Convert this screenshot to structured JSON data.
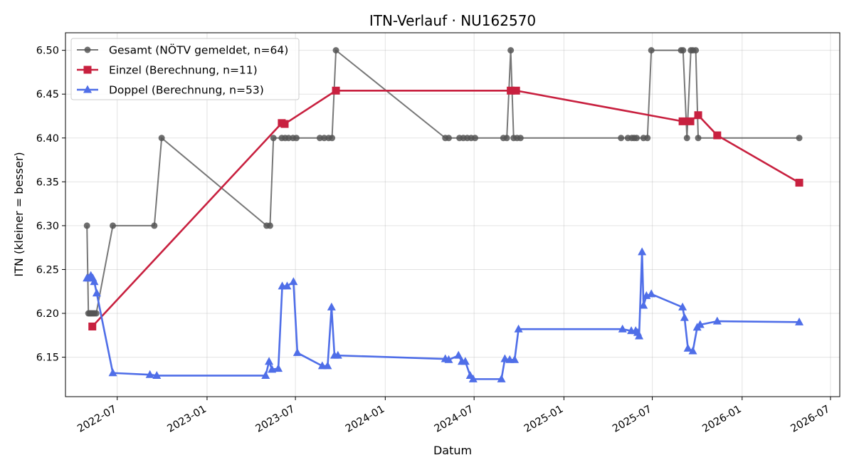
{
  "chart_data": {
    "type": "line",
    "title": "ITN-Verlauf · NU162570",
    "xlabel": "Datum",
    "ylabel": "ITN  (kleiner = besser)",
    "x_type": "date",
    "xlim": [
      "2022-03-17",
      "2026-07-20"
    ],
    "ylim": [
      6.105,
      6.52
    ],
    "x_ticks": [
      "2022-07-01",
      "2023-01-01",
      "2023-07-01",
      "2024-01-01",
      "2024-07-01",
      "2025-01-01",
      "2025-07-01",
      "2026-01-01",
      "2026-07-01"
    ],
    "x_tick_labels": [
      "2022-07",
      "2023-01",
      "2023-07",
      "2024-01",
      "2024-07",
      "2025-01",
      "2025-07",
      "2026-01",
      "2026-07"
    ],
    "y_ticks": [
      6.15,
      6.2,
      6.25,
      6.3,
      6.35,
      6.4,
      6.45,
      6.5
    ],
    "y_tick_labels": [
      "6.15",
      "6.20",
      "6.25",
      "6.30",
      "6.35",
      "6.40",
      "6.45",
      "6.50"
    ],
    "grid": true,
    "legend_position": "top-left",
    "series": [
      {
        "name": "Gesamt (NÖTV gemeldet, n=64)",
        "color": "#555555",
        "marker": "circle",
        "points": [
          [
            "2022-04-30",
            6.3
          ],
          [
            "2022-05-03",
            6.2
          ],
          [
            "2022-05-06",
            6.2
          ],
          [
            "2022-05-09",
            6.2
          ],
          [
            "2022-05-12",
            6.2
          ],
          [
            "2022-05-15",
            6.2
          ],
          [
            "2022-05-19",
            6.2
          ],
          [
            "2022-06-22",
            6.3
          ],
          [
            "2022-09-15",
            6.3
          ],
          [
            "2022-09-30",
            6.4
          ],
          [
            "2023-05-03",
            6.3
          ],
          [
            "2023-05-10",
            6.3
          ],
          [
            "2023-05-17",
            6.4
          ],
          [
            "2023-06-03",
            6.4
          ],
          [
            "2023-06-10",
            6.4
          ],
          [
            "2023-06-17",
            6.4
          ],
          [
            "2023-06-26",
            6.4
          ],
          [
            "2023-07-03",
            6.4
          ],
          [
            "2023-08-20",
            6.4
          ],
          [
            "2023-08-29",
            6.4
          ],
          [
            "2023-09-07",
            6.4
          ],
          [
            "2023-09-14",
            6.4
          ],
          [
            "2023-09-22",
            6.5
          ],
          [
            "2024-05-03",
            6.4
          ],
          [
            "2024-05-10",
            6.4
          ],
          [
            "2024-06-01",
            6.4
          ],
          [
            "2024-06-09",
            6.4
          ],
          [
            "2024-06-17",
            6.4
          ],
          [
            "2024-06-25",
            6.4
          ],
          [
            "2024-07-03",
            6.4
          ],
          [
            "2024-08-30",
            6.4
          ],
          [
            "2024-09-06",
            6.4
          ],
          [
            "2024-09-14",
            6.5
          ],
          [
            "2024-09-20",
            6.4
          ],
          [
            "2024-09-27",
            6.4
          ],
          [
            "2024-10-04",
            6.4
          ],
          [
            "2025-04-28",
            6.4
          ],
          [
            "2025-05-12",
            6.4
          ],
          [
            "2025-05-20",
            6.4
          ],
          [
            "2025-05-25",
            6.4
          ],
          [
            "2025-05-30",
            6.4
          ],
          [
            "2025-06-13",
            6.4
          ],
          [
            "2025-06-21",
            6.4
          ],
          [
            "2025-06-29",
            6.5
          ],
          [
            "2025-08-29",
            6.5
          ],
          [
            "2025-09-02",
            6.5
          ],
          [
            "2025-09-10",
            6.4
          ],
          [
            "2025-09-18",
            6.5
          ],
          [
            "2025-09-22",
            6.5
          ],
          [
            "2025-09-28",
            6.5
          ],
          [
            "2025-10-03",
            6.4
          ],
          [
            "2026-04-28",
            6.4
          ]
        ]
      },
      {
        "name": "Einzel (Berechnung, n=11)",
        "color": "#c8203f",
        "marker": "square",
        "points": [
          [
            "2022-05-11",
            6.185
          ],
          [
            "2023-06-03",
            6.417
          ],
          [
            "2023-06-09",
            6.416
          ],
          [
            "2023-09-22",
            6.454
          ],
          [
            "2024-09-14",
            6.454
          ],
          [
            "2024-09-25",
            6.454
          ],
          [
            "2025-09-01",
            6.419
          ],
          [
            "2025-09-17",
            6.419
          ],
          [
            "2025-10-03",
            6.426
          ],
          [
            "2025-11-11",
            6.403
          ],
          [
            "2026-04-28",
            6.349
          ]
        ]
      },
      {
        "name": "Doppel (Berechnung, n=53)",
        "color": "#4f6ee8",
        "marker": "triangle",
        "points": [
          [
            "2022-04-30",
            6.24
          ],
          [
            "2022-05-04",
            6.24
          ],
          [
            "2022-05-08",
            6.243
          ],
          [
            "2022-05-12",
            6.24
          ],
          [
            "2022-05-15",
            6.236
          ],
          [
            "2022-05-20",
            6.223
          ],
          [
            "2022-06-22",
            6.132
          ],
          [
            "2022-09-06",
            6.13
          ],
          [
            "2022-09-20",
            6.129
          ],
          [
            "2023-05-01",
            6.129
          ],
          [
            "2023-05-08",
            6.145
          ],
          [
            "2023-05-14",
            6.136
          ],
          [
            "2023-05-27",
            6.137
          ],
          [
            "2023-06-04",
            6.231
          ],
          [
            "2023-06-14",
            6.231
          ],
          [
            "2023-06-27",
            6.236
          ],
          [
            "2023-07-05",
            6.155
          ],
          [
            "2023-08-25",
            6.14
          ],
          [
            "2023-09-05",
            6.14
          ],
          [
            "2023-09-13",
            6.207
          ],
          [
            "2023-09-19",
            6.152
          ],
          [
            "2023-09-26",
            6.152
          ],
          [
            "2024-05-03",
            6.148
          ],
          [
            "2024-05-10",
            6.147
          ],
          [
            "2024-05-30",
            6.152
          ],
          [
            "2024-06-06",
            6.145
          ],
          [
            "2024-06-13",
            6.145
          ],
          [
            "2024-06-23",
            6.129
          ],
          [
            "2024-06-29",
            6.125
          ],
          [
            "2024-08-26",
            6.125
          ],
          [
            "2024-09-02",
            6.148
          ],
          [
            "2024-09-12",
            6.147
          ],
          [
            "2024-09-22",
            6.147
          ],
          [
            "2024-09-30",
            6.182
          ],
          [
            "2025-05-01",
            6.182
          ],
          [
            "2025-05-19",
            6.18
          ],
          [
            "2025-05-28",
            6.18
          ],
          [
            "2025-06-01",
            6.178
          ],
          [
            "2025-06-04",
            6.174
          ],
          [
            "2025-06-10",
            6.27
          ],
          [
            "2025-06-13",
            6.209
          ],
          [
            "2025-06-19",
            6.22
          ],
          [
            "2025-06-29",
            6.222
          ],
          [
            "2025-09-01",
            6.207
          ],
          [
            "2025-09-05",
            6.195
          ],
          [
            "2025-09-12",
            6.16
          ],
          [
            "2025-09-22",
            6.157
          ],
          [
            "2025-10-01",
            6.184
          ],
          [
            "2025-10-07",
            6.187
          ],
          [
            "2025-11-11",
            6.191
          ],
          [
            "2026-04-28",
            6.19
          ]
        ]
      }
    ]
  }
}
